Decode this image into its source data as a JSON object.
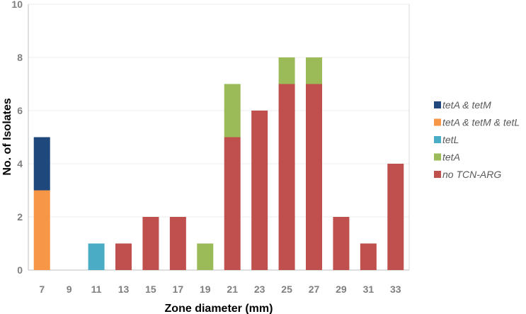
{
  "chart_data": {
    "type": "bar",
    "stacked": true,
    "title": "",
    "xlabel": "Zone diameter (mm)",
    "ylabel": "No. of Isolates",
    "ylim": [
      0,
      10
    ],
    "yticks": [
      0,
      2,
      4,
      6,
      8,
      10
    ],
    "grid": true,
    "legend_position": "right",
    "categories": [
      "7",
      "9",
      "11",
      "13",
      "15",
      "17",
      "19",
      "21",
      "23",
      "25",
      "27",
      "29",
      "31",
      "33"
    ],
    "series": [
      {
        "name": "no TCN-ARG",
        "color": "#c0504d",
        "values": [
          0,
          0,
          0,
          1,
          2,
          2,
          0,
          5,
          6,
          7,
          7,
          2,
          1,
          4
        ]
      },
      {
        "name": "tetA",
        "color": "#9bbb59",
        "values": [
          0,
          0,
          0,
          0,
          0,
          0,
          1,
          2,
          0,
          1,
          1,
          0,
          0,
          0
        ]
      },
      {
        "name": "tetL",
        "color": "#4bacc6",
        "values": [
          0,
          0,
          1,
          0,
          0,
          0,
          0,
          0,
          0,
          0,
          0,
          0,
          0,
          0
        ]
      },
      {
        "name": "tetA & tetM & tetL",
        "color": "#f79646",
        "values": [
          3,
          0,
          0,
          0,
          0,
          0,
          0,
          0,
          0,
          0,
          0,
          0,
          0,
          0
        ]
      },
      {
        "name": "tetA & tetM",
        "color": "#1f497d",
        "values": [
          2,
          0,
          0,
          0,
          0,
          0,
          0,
          0,
          0,
          0,
          0,
          0,
          0,
          0
        ]
      }
    ],
    "legend_order": [
      "tetA & tetM",
      "tetA & tetM & tetL",
      "tetL",
      "tetA",
      "no TCN-ARG"
    ]
  }
}
